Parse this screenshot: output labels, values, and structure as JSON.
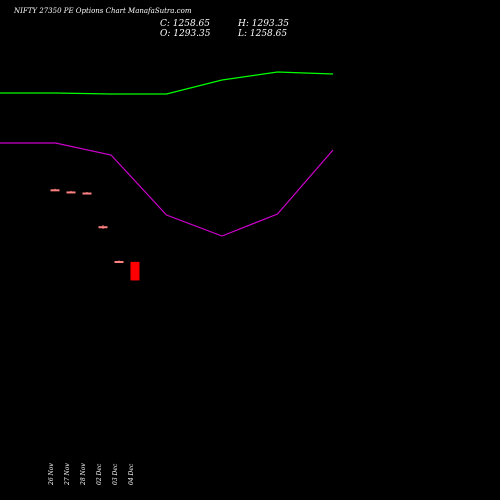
{
  "header": {
    "title": "NIFTY 27350  PE Options  Chart ManafaSutra.com",
    "close": "C: 1258.65",
    "high": "H: 1293.35",
    "open": "O: 1293.35",
    "low": "L: 1258.65"
  },
  "colors": {
    "background": "#000000",
    "up_candle": "#ff8080",
    "down_candle": "#ff0000",
    "line_green": "#00ff00",
    "line_magenta": "#cc00cc"
  },
  "chart_data": {
    "type": "candlestick",
    "categories": [
      "26 Nov",
      "27 Nov",
      "28 Nov",
      "02 Dec",
      "03 Dec",
      "04 Dec"
    ],
    "candles": [
      {
        "date": "26 Nov",
        "open": 1428,
        "high": 1430,
        "low": 1426,
        "close": 1429,
        "color": "#ff8080"
      },
      {
        "date": "27 Nov",
        "open": 1424,
        "high": 1426,
        "low": 1422,
        "close": 1425,
        "color": "#ff8080"
      },
      {
        "date": "28 Nov",
        "open": 1422,
        "high": 1424,
        "low": 1420,
        "close": 1423,
        "color": "#ff8080"
      },
      {
        "date": "02 Dec",
        "open": 1358,
        "high": 1362,
        "low": 1355,
        "close": 1360,
        "color": "#ff8080"
      },
      {
        "date": "03 Dec",
        "open": 1295,
        "high": 1296,
        "low": 1294,
        "close": 1295,
        "color": "#ff8080"
      },
      {
        "date": "04 Dec",
        "open": 1293.35,
        "high": 1293.35,
        "low": 1258.65,
        "close": 1258.65,
        "color": "#ff0000"
      }
    ],
    "lines": [
      {
        "color": "#00ff00",
        "x": [
          0,
          1,
          2,
          3,
          4,
          5,
          6
        ],
        "y": [
          93,
          93,
          94,
          94,
          80,
          72,
          74
        ]
      },
      {
        "color": "#cc00cc",
        "x": [
          0,
          1,
          2,
          3,
          4,
          5,
          6
        ],
        "y": [
          143,
          143,
          155,
          215,
          236,
          214,
          150
        ]
      }
    ]
  }
}
